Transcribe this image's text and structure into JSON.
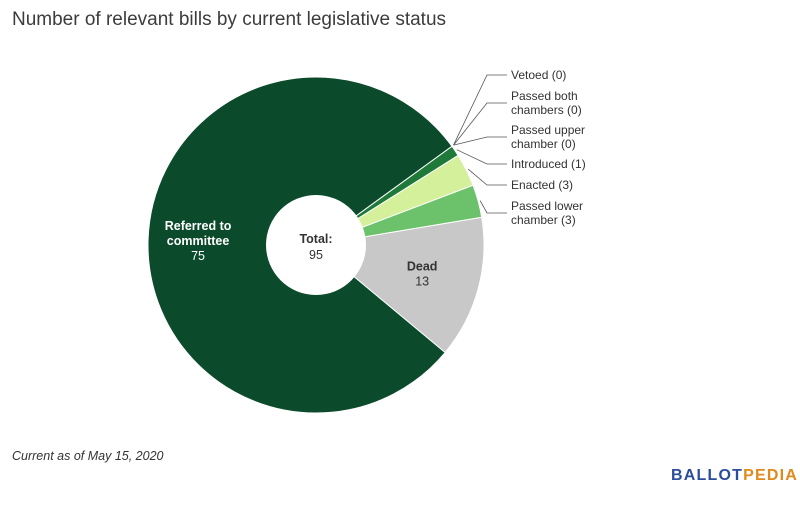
{
  "title": "Number of relevant bills by current legislative status",
  "footnote": "Current as of May 15, 2020",
  "logo": {
    "part1": "BALLOT",
    "part2": "PEDIA"
  },
  "center_label": {
    "title": "Total:",
    "value": "95"
  },
  "chart_data": {
    "type": "pie",
    "donut": true,
    "total": 95,
    "slices": [
      {
        "name": "Vetoed",
        "value": 0,
        "color": "#0b4a2b",
        "label_lines": [
          "Vetoed (0)"
        ],
        "label_position": "outside"
      },
      {
        "name": "Passed both chambers",
        "value": 0,
        "color": "#0b4a2b",
        "label_lines": [
          "Passed both",
          "chambers (0)"
        ],
        "label_position": "outside"
      },
      {
        "name": "Passed upper chamber",
        "value": 0,
        "color": "#0b4a2b",
        "label_lines": [
          "Passed upper",
          "chamber (0)"
        ],
        "label_position": "outside"
      },
      {
        "name": "Introduced",
        "value": 1,
        "color": "#1f7a3a",
        "label_lines": [
          "Introduced (1)"
        ],
        "label_position": "outside"
      },
      {
        "name": "Enacted",
        "value": 3,
        "color": "#d4f09a",
        "label_lines": [
          "Enacted (3)"
        ],
        "label_position": "outside"
      },
      {
        "name": "Passed lower chamber",
        "value": 3,
        "color": "#6cc26a",
        "label_lines": [
          "Passed lower",
          "chamber (3)"
        ],
        "label_position": "outside"
      },
      {
        "name": "Dead",
        "value": 13,
        "color": "#c8c8c8",
        "label_lines": [
          "Dead"
        ],
        "value_label": "13",
        "label_position": "inside",
        "text_color": "#333333"
      },
      {
        "name": "Referred to committee",
        "value": 75,
        "color": "#0b4a2b",
        "label_lines": [
          "Referred to",
          "committee"
        ],
        "value_label": "75",
        "label_position": "inside",
        "text_color": "#ffffff"
      }
    ]
  }
}
